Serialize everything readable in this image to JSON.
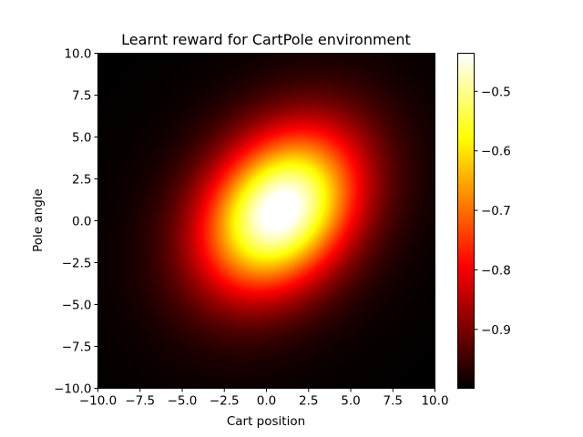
{
  "chart_data": {
    "type": "heatmap",
    "title": "Learnt reward for CartPole environment",
    "xlabel": "Cart position",
    "ylabel": "Pole angle",
    "xlim": [
      -10,
      10
    ],
    "ylim": [
      -10,
      10
    ],
    "xticks": [
      "−10.0",
      "−7.5",
      "−5.0",
      "−2.5",
      "0.0",
      "2.5",
      "5.0",
      "7.5",
      "10.0"
    ],
    "xtick_values": [
      -10,
      -7.5,
      -5,
      -2.5,
      0,
      2.5,
      5,
      7.5,
      10
    ],
    "yticks": [
      "−10.0",
      "−7.5",
      "−5.0",
      "−2.5",
      "0.0",
      "2.5",
      "5.0",
      "7.5",
      "10.0"
    ],
    "ytick_values": [
      -10,
      -7.5,
      -5,
      -2.5,
      0,
      2.5,
      5,
      7.5,
      10
    ],
    "colormap": "hot",
    "clim": [
      -0.999,
      -0.436
    ],
    "colorbar_ticks": [
      "−0.5",
      "−0.6",
      "−0.7",
      "−0.8",
      "−0.9"
    ],
    "colorbar_tick_values": [
      -0.5,
      -0.6,
      -0.7,
      -0.8,
      -0.9
    ],
    "peak": {
      "x": 0.8,
      "y": 0.6,
      "value": -0.436
    },
    "baseline_value": -1.0,
    "spread": {
      "major_sigma": 3.6,
      "minor_sigma": 2.7,
      "major_axis_angle_deg": 50
    },
    "grid": false
  }
}
